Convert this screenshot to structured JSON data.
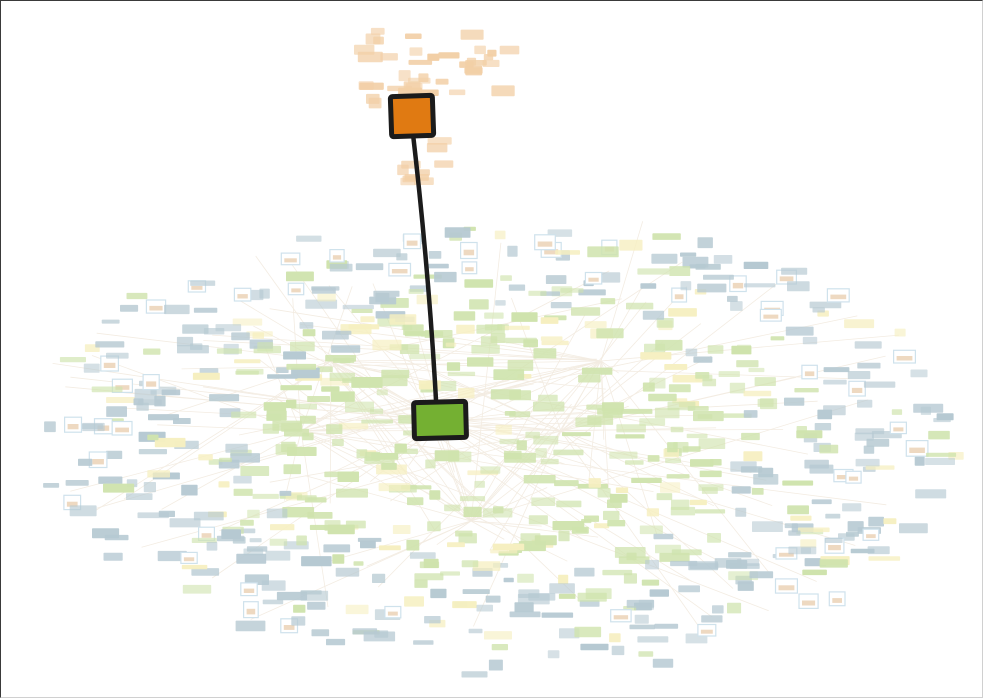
{
  "diagram": {
    "type": "network-overview",
    "colors": {
      "highlight_cluster_node": "#e07a12",
      "highlight_main_node": "#74b032",
      "highlight_outline": "#1b1b1b",
      "connector": "#1b1b1b",
      "cluster_orange_faded": "#f2cfa6",
      "nodes_green_faded": "#cfe3ad",
      "nodes_blue_faded": "#b6c9d2",
      "nodes_yellow_faded": "#f6efc0",
      "thumbnail_border": "#cfe2ec",
      "edges_faded": "#f3ece2"
    },
    "highlighted_nodes": [
      {
        "id": "detached-cluster-node",
        "color": "orange"
      },
      {
        "id": "main-network-node",
        "color": "green"
      }
    ],
    "highlighted_edges": [
      {
        "from": "detached-cluster-node",
        "to": "main-network-node"
      }
    ]
  }
}
